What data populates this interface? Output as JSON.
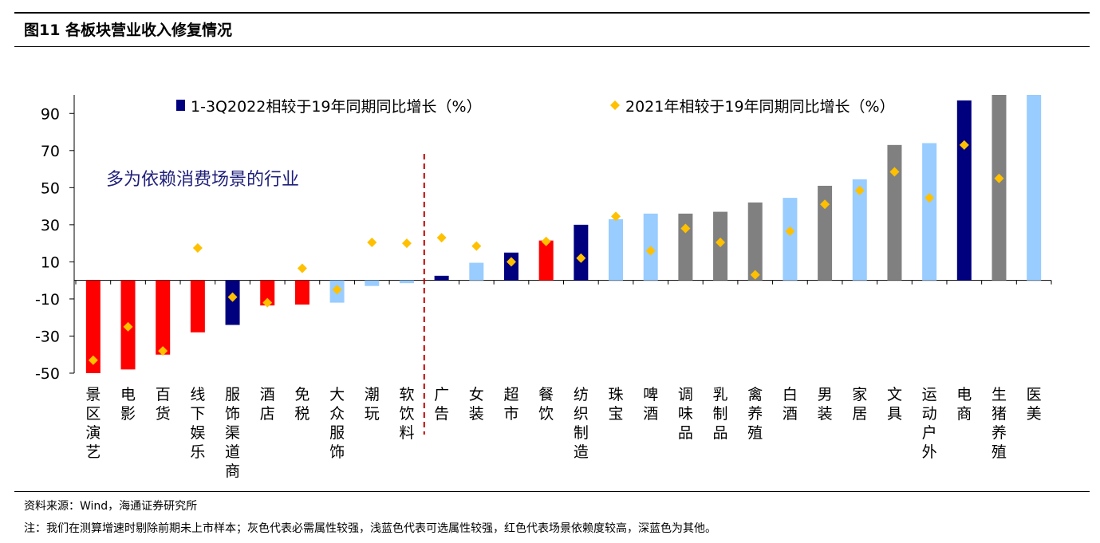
{
  "figure": {
    "title": "图11 各板块营业收入修复情况",
    "source": "资料来源：Wind，海通证券研究所",
    "note": "注：我们在测算增速时剔除前期未上市样本；灰色代表必需属性较强，浅蓝色代表可选属性较强，红色代表场景依赖度较高，深蓝色为其他。"
  },
  "chart_data": {
    "type": "bar",
    "title": "",
    "annotation": "多为依赖消费场景的行业",
    "ylim": [
      -50,
      100
    ],
    "yticks": [
      90,
      70,
      50,
      30,
      10,
      -10,
      -30,
      -50
    ],
    "legend_position": "top",
    "categories": [
      "景区演艺",
      "电影",
      "百货",
      "线下娱乐",
      "服饰渠道商",
      "酒店",
      "免税",
      "大众服饰",
      "潮玩",
      "软饮料",
      "广告",
      "女装",
      "超市",
      "餐饮",
      "纺织制造",
      "珠宝",
      "啤酒",
      "调味品",
      "乳制品",
      "禽养殖",
      "白酒",
      "男装",
      "家居",
      "文具",
      "运动户外",
      "电商",
      "生猪养殖",
      "医美"
    ],
    "series": [
      {
        "name": "1-3Q2022相较于19年同期同比增长（%）",
        "kind": "bar",
        "values": [
          -50,
          -48,
          -40,
          -28,
          -24,
          -13.5,
          -13,
          -12,
          -3,
          -1.5,
          2.5,
          9.5,
          15,
          21.5,
          30,
          33,
          36,
          36,
          37,
          42,
          44.5,
          51,
          54.5,
          73,
          74,
          97,
          100,
          100
        ]
      },
      {
        "name": "2021年相较于19年同期同比增长（%）",
        "kind": "marker",
        "values": [
          -43,
          -25,
          -38,
          17.5,
          -9,
          -12,
          6.5,
          -5,
          20.5,
          20,
          23,
          18.5,
          10,
          21,
          12,
          34.5,
          16,
          28,
          20.5,
          3,
          26.5,
          41,
          48.5,
          58.5,
          44.5,
          73,
          55,
          null
        ]
      }
    ],
    "bar_groups": [
      "red",
      "red",
      "red",
      "red",
      "navy",
      "red",
      "red",
      "lightblue",
      "lightblue",
      "lightblue",
      "navy",
      "lightblue",
      "navy",
      "red",
      "navy",
      "lightblue",
      "lightblue",
      "gray",
      "gray",
      "gray",
      "lightblue",
      "gray",
      "lightblue",
      "gray",
      "lightblue",
      "navy",
      "gray",
      "lightblue"
    ],
    "colors": {
      "red": "#ff0000",
      "navy": "#00007f",
      "lightblue": "#99ccff",
      "gray": "#808080",
      "marker": "#ffc000",
      "divider": "#c00000",
      "annotation": "#1f1f7a"
    }
  }
}
